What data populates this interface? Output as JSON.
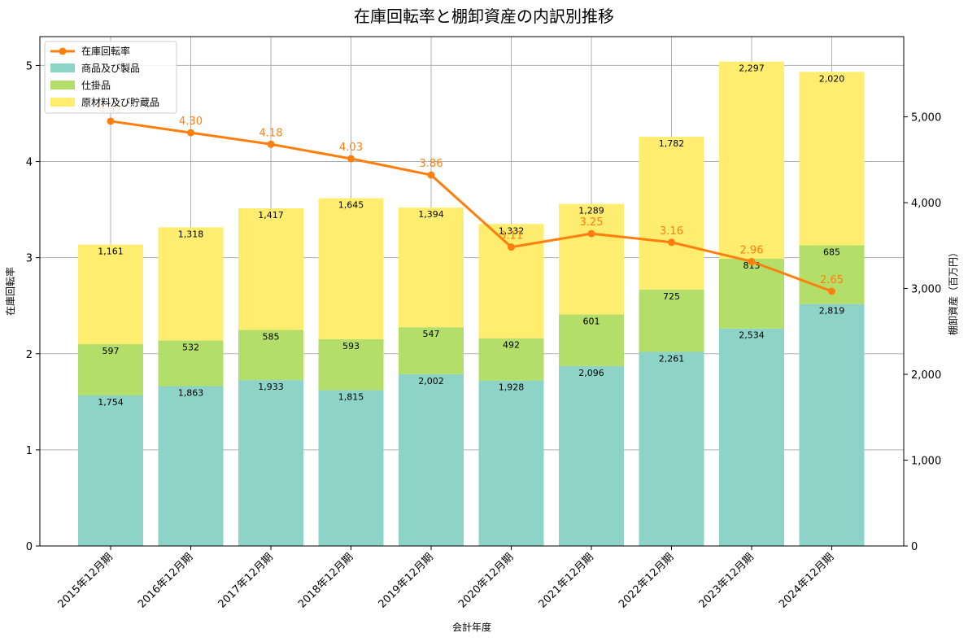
{
  "chart_data": {
    "type": "bar",
    "title": "在庫回転率と棚卸資産の内訳別推移",
    "xlabel": "会計年度",
    "ylabel_left": "在庫回転率",
    "ylabel_right": "棚卸資産（百万円）",
    "categories": [
      "2015年12月期",
      "2016年12月期",
      "2017年12月期",
      "2018年12月期",
      "2019年12月期",
      "2020年12月期",
      "2021年12月期",
      "2022年12月期",
      "2023年12月期",
      "2024年12月期"
    ],
    "left_axis": {
      "range": [
        0,
        5.3
      ],
      "ticks": [
        "0",
        "1",
        "2",
        "3",
        "4",
        "5"
      ]
    },
    "right_axis": {
      "range": [
        0,
        5935
      ],
      "ticks": [
        "0",
        "1,000",
        "2,000",
        "3,000",
        "4,000",
        "5,000"
      ]
    },
    "grid": true,
    "legend_position": "top-left",
    "series": [
      {
        "name": "商品及び製品",
        "type": "stacked-bar",
        "axis": "right",
        "color": "#8dd3c7",
        "values": [
          1754,
          1863,
          1933,
          1815,
          2002,
          1928,
          2096,
          2261,
          2534,
          2819
        ],
        "labels": [
          "1,754",
          "1,863",
          "1,933",
          "1,815",
          "2,002",
          "1,928",
          "2,096",
          "2,261",
          "2,534",
          "2,819"
        ]
      },
      {
        "name": "仕掛品",
        "type": "stacked-bar",
        "axis": "right",
        "color": "#b3de69",
        "values": [
          597,
          532,
          585,
          593,
          547,
          492,
          601,
          725,
          813,
          685
        ],
        "labels": [
          "597",
          "532",
          "585",
          "593",
          "547",
          "492",
          "601",
          "725",
          "813",
          "685"
        ]
      },
      {
        "name": "原材料及び貯蔵品",
        "type": "stacked-bar",
        "axis": "right",
        "color": "#ffed6f",
        "values": [
          1161,
          1318,
          1417,
          1645,
          1394,
          1332,
          1289,
          1782,
          2297,
          2020
        ],
        "labels": [
          "1,161",
          "1,318",
          "1,417",
          "1,645",
          "1,394",
          "1,332",
          "1,289",
          "1,782",
          "2,297",
          "2,020"
        ]
      },
      {
        "name": "在庫回転率",
        "type": "line",
        "axis": "left",
        "color": "#ff7f0e",
        "values": [
          4.42,
          4.3,
          4.18,
          4.03,
          3.86,
          3.11,
          3.25,
          3.16,
          2.96,
          2.65
        ],
        "labels": [
          "4.42",
          "4.30",
          "4.18",
          "4.03",
          "3.86",
          "3.11",
          "3.25",
          "3.16",
          "2.96",
          "2.65"
        ]
      }
    ]
  }
}
